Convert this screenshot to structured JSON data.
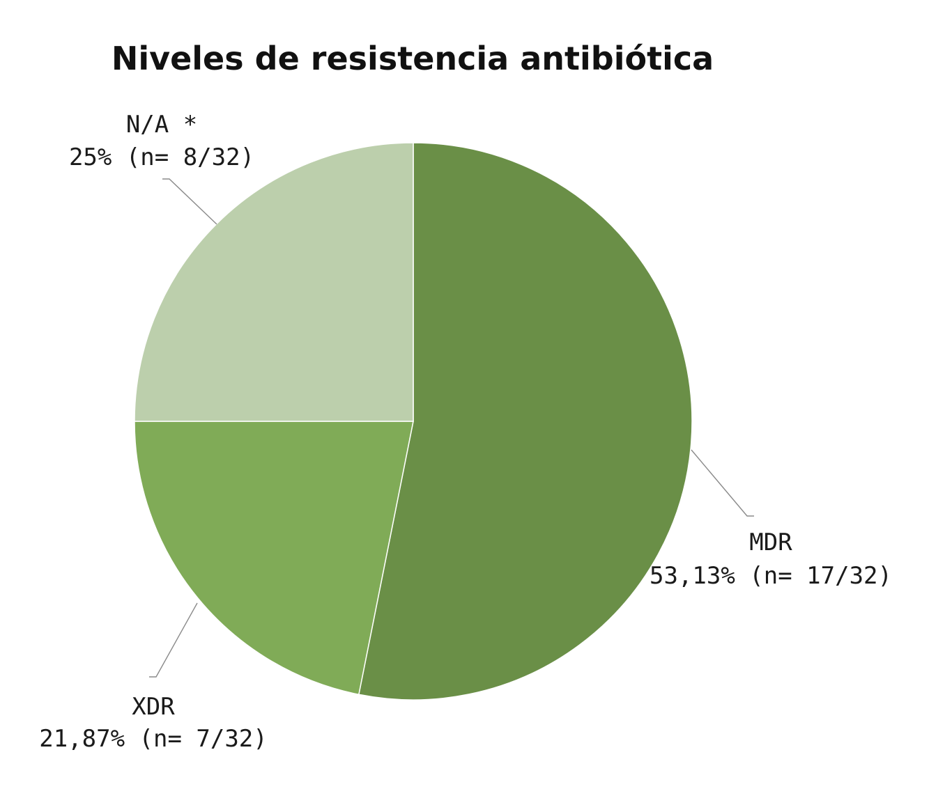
{
  "chart_data": {
    "type": "pie",
    "title": "Niveles de resistencia antibiótica",
    "slices": [
      {
        "label": "MDR",
        "value_label": "53,13% (n= 17/32)",
        "percent": 53.13,
        "count": 17,
        "total": 32,
        "color": "#6a8f47"
      },
      {
        "label": "XDR",
        "value_label": "21,87% (n= 7/32)",
        "percent": 21.87,
        "count": 7,
        "total": 32,
        "color": "#80ab57"
      },
      {
        "label": "N/A *",
        "value_label": "25% (n= 8/32)",
        "percent": 25,
        "count": 8,
        "total": 32,
        "color": "#bccfac"
      }
    ],
    "start": "top",
    "direction": "clockwise",
    "legend": "none"
  }
}
